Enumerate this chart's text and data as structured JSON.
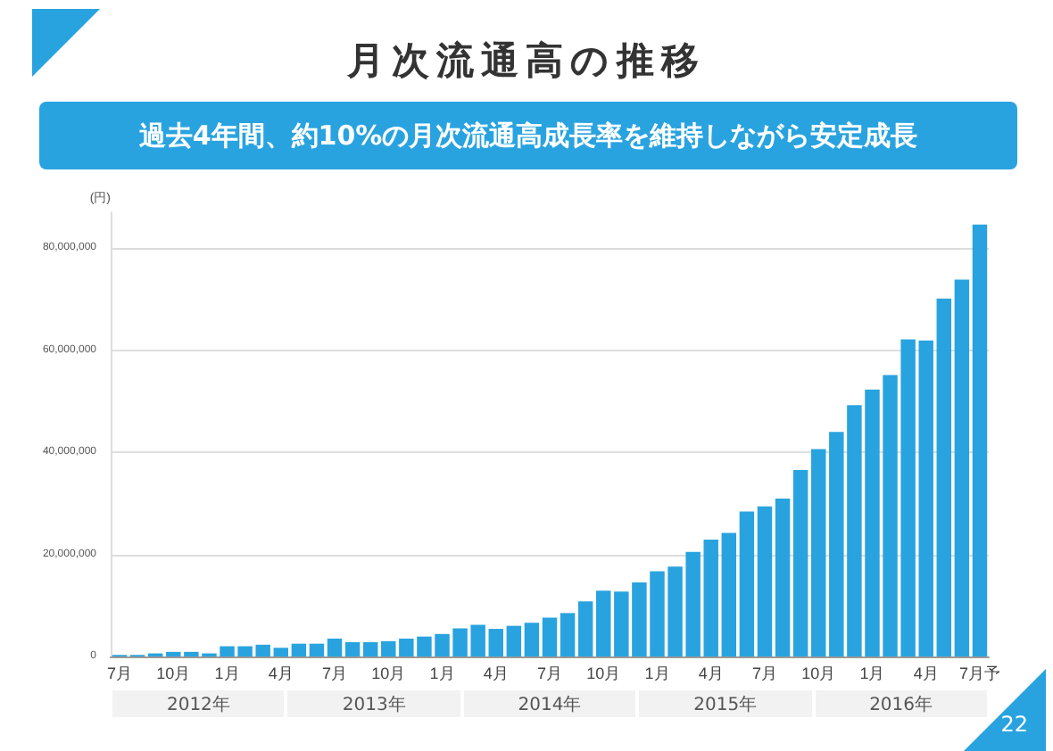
{
  "chart_data": {
    "type": "bar",
    "title": "月次流通高の推移",
    "subtitle": "過去4年間、約10%の月次流通高成長率を維持しながら安定成長",
    "ylabel": "(円)",
    "categories": [
      "7月",
      null,
      null,
      "10月",
      null,
      null,
      "1月",
      null,
      null,
      "4月",
      null,
      null,
      "7月",
      null,
      null,
      "10月",
      null,
      null,
      "1月",
      null,
      null,
      "4月",
      null,
      null,
      "7月",
      null,
      null,
      "10月",
      null,
      null,
      "1月",
      null,
      null,
      "4月",
      null,
      null,
      "7月",
      null,
      null,
      "10月",
      null,
      null,
      "1月",
      null,
      null,
      "4月",
      null,
      null,
      "7月予"
    ],
    "values": [
      300000,
      300000,
      600000,
      900000,
      900000,
      600000,
      2000000,
      2000000,
      2300000,
      1700000,
      2500000,
      2500000,
      3500000,
      2800000,
      2800000,
      3000000,
      3500000,
      3900000,
      4400000,
      5500000,
      6200000,
      5400000,
      6000000,
      6600000,
      7600000,
      8500000,
      10800000,
      12900000,
      12700000,
      14500000,
      16700000,
      17600000,
      20500000,
      22900000,
      24200000,
      28400000,
      29400000,
      30900000,
      36500000,
      40600000,
      44000000,
      49200000,
      52300000,
      55100000,
      62100000,
      61900000,
      70100000,
      73800000,
      84600000
    ],
    "color": "#29a3df",
    "ylim": [
      0,
      87000000
    ],
    "yticks": [
      0,
      {
        "value": 20000000,
        "label": "20,000,000"
      },
      {
        "value": 40000000,
        "label": "40,000,000"
      },
      {
        "value": 60000000,
        "label": "60,000,000"
      },
      {
        "value": 80000000,
        "label": "80,000,000"
      }
    ],
    "grid": "y",
    "annotations": [
      "2012年",
      "2013年",
      "2014年",
      "2015年",
      "2016年",
      "22"
    ]
  }
}
